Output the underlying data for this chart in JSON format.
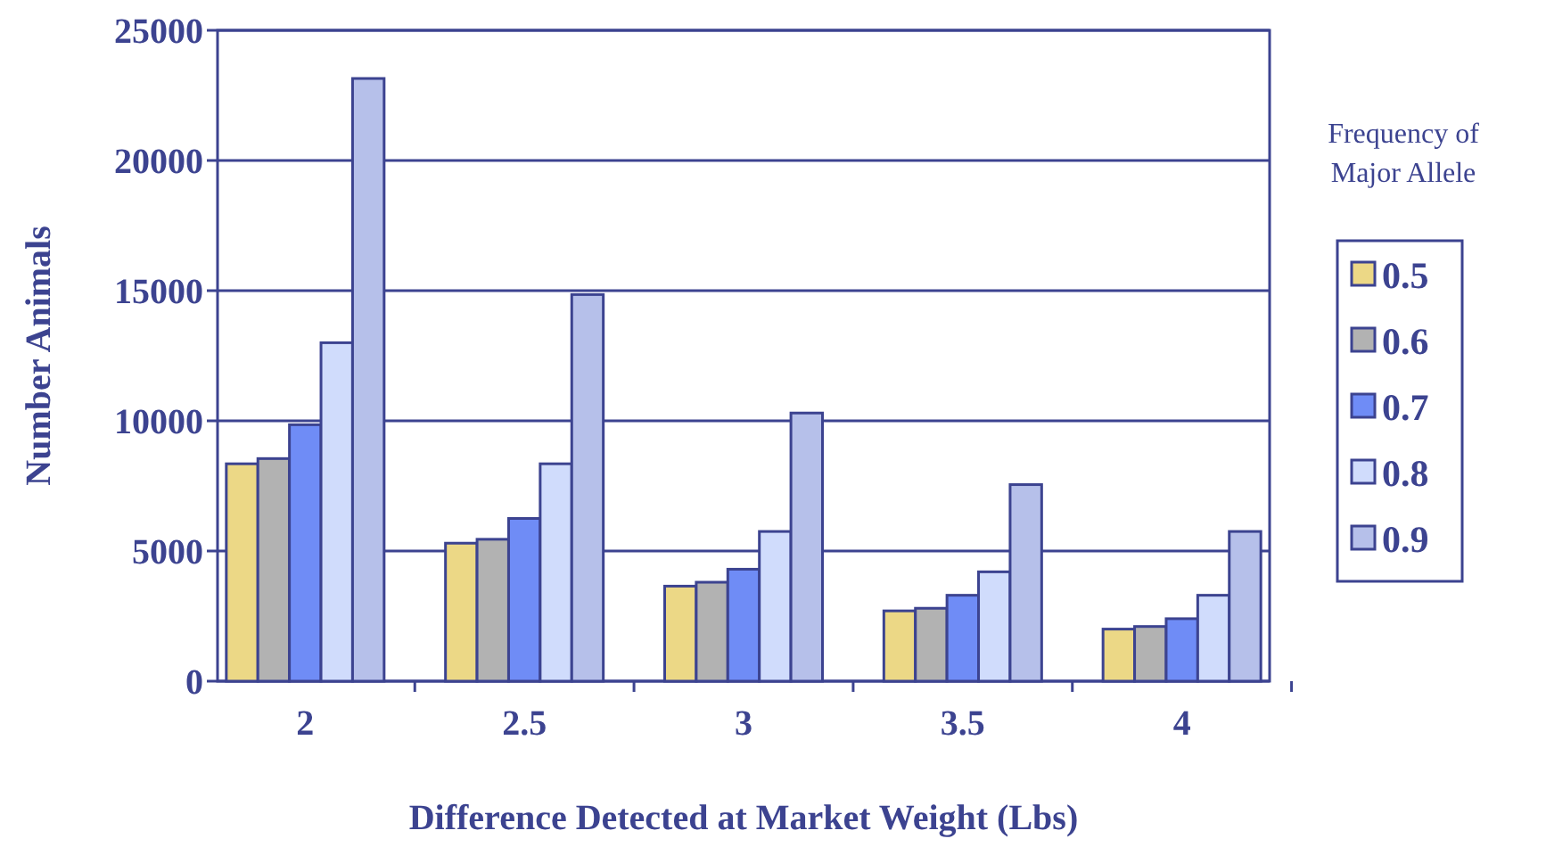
{
  "chart_data": {
    "type": "bar",
    "xlabel": "Difference Detected at Market Weight (Lbs)",
    "ylabel": "Number Animals",
    "legend_title": "Frequency of Major Allele",
    "categories": [
      "2",
      "2.5",
      "3",
      "3.5",
      "4"
    ],
    "series": [
      {
        "name": "0.5",
        "color": "#ecd886",
        "values": [
          8350,
          5300,
          3650,
          2700,
          2000
        ]
      },
      {
        "name": "0.6",
        "color": "#b2b2b2",
        "values": [
          8550,
          5450,
          3800,
          2800,
          2100
        ]
      },
      {
        "name": "0.7",
        "color": "#6f8cf6",
        "values": [
          9850,
          6250,
          4300,
          3300,
          2400
        ]
      },
      {
        "name": "0.8",
        "color": "#d0dcfc",
        "values": [
          13000,
          8350,
          5750,
          4200,
          3300
        ]
      },
      {
        "name": "0.9",
        "color": "#b6c0ea",
        "values": [
          23150,
          14850,
          10300,
          7550,
          5750
        ]
      }
    ],
    "ylim": [
      0,
      25000
    ],
    "yticks": [
      0,
      5000,
      10000,
      15000,
      20000,
      25000
    ],
    "grid": "y",
    "legend": "right"
  }
}
